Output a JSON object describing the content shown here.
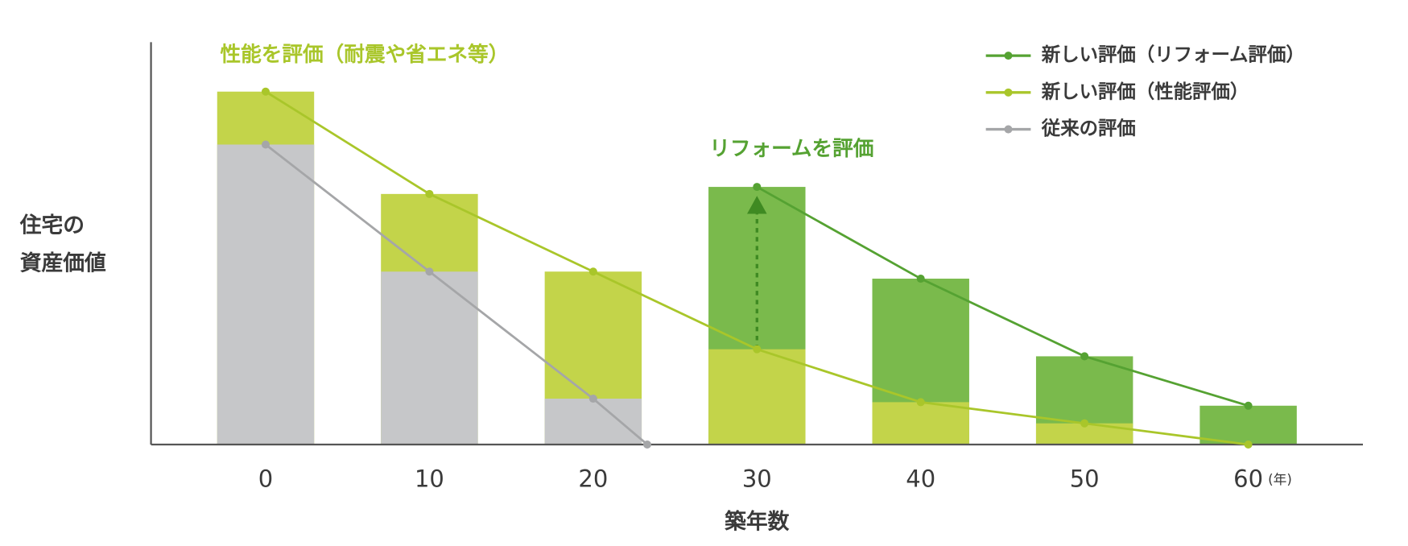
{
  "chart_data": {
    "type": "bar-line",
    "annotations": [
      "性能を評価（耐震や省エネ等）",
      "リフォームを評価"
    ],
    "ylabel": [
      "住宅の",
      "資産価値"
    ],
    "xlabel": "築年数",
    "xunit": "(年)",
    "xlim": [
      -7,
      67
    ],
    "ylim": [
      0,
      114
    ],
    "xticks": [
      0,
      10,
      20,
      30,
      40,
      50,
      60
    ],
    "legend": "top-right",
    "series": [
      {
        "name": "新しい評価（リフォーム評価）",
        "color": "#7aba4c",
        "line_color": "#55a232",
        "x": [
          30,
          40,
          50,
          60
        ],
        "values": [
          73,
          47,
          25,
          11
        ]
      },
      {
        "name": "新しい評価（性能評価）",
        "color": "#c3d44a",
        "line_color": "#a9c62a",
        "x": [
          0,
          10,
          20,
          30,
          40,
          50,
          60
        ],
        "values": [
          100,
          71,
          49,
          27,
          12,
          6,
          0
        ]
      },
      {
        "name": "従来の評価",
        "color": "#c6c7c9",
        "line_color": "#a5a6a8",
        "x": [
          0,
          10,
          20,
          23.3
        ],
        "values": [
          85,
          49,
          13,
          0
        ]
      }
    ]
  }
}
